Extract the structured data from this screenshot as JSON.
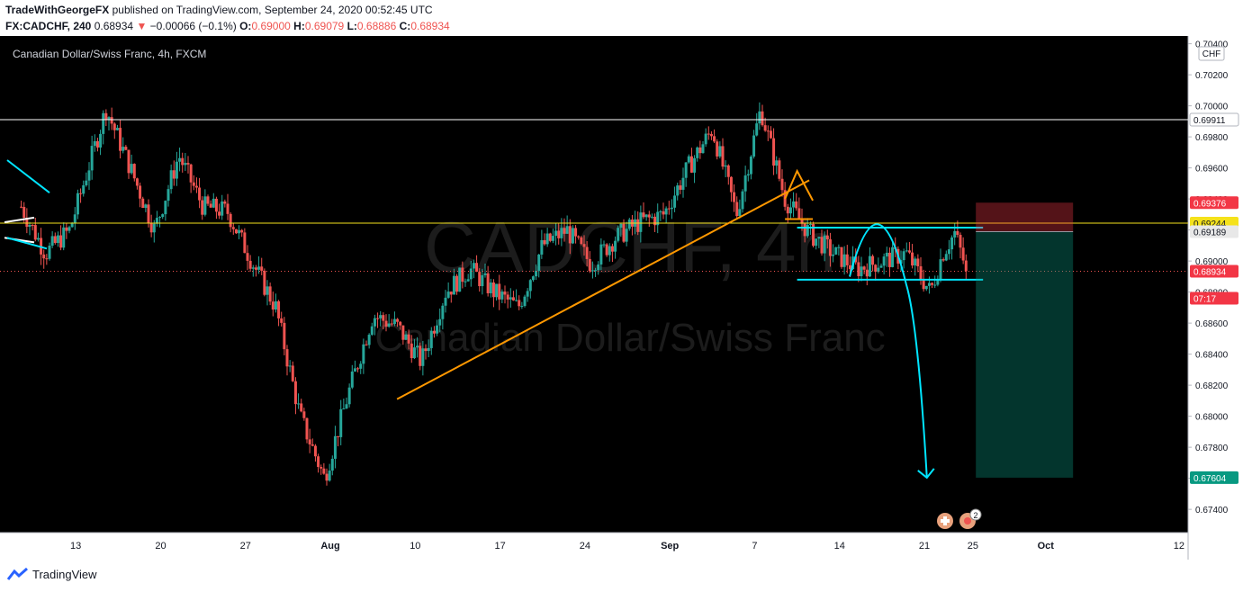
{
  "header": {
    "author": "TradeWithGeorgeFX",
    "published_text": "published on TradingView.com, September 24, 2020 00:52:45 UTC",
    "symbol": "FX:CADCHF, 240",
    "last": "0.68934",
    "change": "−0.00066 (−0.1%)",
    "o_label": "O:",
    "o_value": "0.69000",
    "h_label": "H:",
    "h_value": "0.69079",
    "l_label": "L:",
    "l_value": "0.68886",
    "c_label": "C:",
    "c_value": "0.68934"
  },
  "chart_title": "Canadian Dollar/Swiss Franc, 4h, FXCM",
  "watermark": {
    "ticker": "CADCHF, 4h",
    "name": "Canadian Dollar/Swiss Franc"
  },
  "currency_button": "CHF",
  "footer": {
    "brand": "TradingView"
  },
  "chart_data": {
    "type": "candlestick",
    "timeframe": "4h",
    "ylim": [
      0.6725,
      0.7045
    ],
    "y_ticks": [
      "0.70400",
      "0.70200",
      "0.70000",
      "0.69800",
      "0.69600",
      "0.69400",
      "0.69200",
      "0.69000",
      "0.68800",
      "0.68600",
      "0.68400",
      "0.68200",
      "0.68000",
      "0.67800",
      "0.67600",
      "0.67400"
    ],
    "x_ticks": [
      "13",
      "20",
      "27",
      "Aug",
      "10",
      "17",
      "24",
      "Sep",
      "7",
      "14",
      "21",
      "25",
      "Oct",
      "12"
    ],
    "x_tick_dates": [
      "2020-07-13",
      "2020-07-20",
      "2020-07-27",
      "2020-08-03",
      "2020-08-10",
      "2020-08-17",
      "2020-08-24",
      "2020-08-31",
      "2020-09-07",
      "2020-09-14",
      "2020-09-21",
      "2020-09-25",
      "2020-10-01",
      "2020-10-12"
    ],
    "price_path": [
      [
        "2020-07-08",
        0.6935
      ],
      [
        "2020-07-10",
        0.6905
      ],
      [
        "2020-07-12",
        0.692
      ],
      [
        "2020-07-15",
        0.6998
      ],
      [
        "2020-07-17",
        0.696
      ],
      [
        "2020-07-19",
        0.692
      ],
      [
        "2020-07-21",
        0.6968
      ],
      [
        "2020-07-23",
        0.6935
      ],
      [
        "2020-07-25",
        0.6932
      ],
      [
        "2020-07-27",
        0.69
      ],
      [
        "2020-07-29",
        0.687
      ],
      [
        "2020-07-31",
        0.68
      ],
      [
        "2020-08-02",
        0.676
      ],
      [
        "2020-08-04",
        0.6815
      ],
      [
        "2020-08-06",
        0.6865
      ],
      [
        "2020-08-08",
        0.6858
      ],
      [
        "2020-08-10",
        0.6835
      ],
      [
        "2020-08-12",
        0.688
      ],
      [
        "2020-08-14",
        0.6895
      ],
      [
        "2020-08-16",
        0.688
      ],
      [
        "2020-08-18",
        0.687
      ],
      [
        "2020-08-20",
        0.691
      ],
      [
        "2020-08-22",
        0.692
      ],
      [
        "2020-08-24",
        0.6898
      ],
      [
        "2020-08-26",
        0.6915
      ],
      [
        "2020-08-28",
        0.6925
      ],
      [
        "2020-08-30",
        0.693
      ],
      [
        "2020-09-01",
        0.696
      ],
      [
        "2020-09-03",
        0.6985
      ],
      [
        "2020-09-05",
        0.693
      ],
      [
        "2020-09-07",
        0.6998
      ],
      [
        "2020-09-09",
        0.694
      ],
      [
        "2020-09-11",
        0.6918
      ],
      [
        "2020-09-13",
        0.6905
      ],
      [
        "2020-09-15",
        0.6895
      ],
      [
        "2020-09-17",
        0.69
      ],
      [
        "2020-09-19",
        0.6905
      ],
      [
        "2020-09-21",
        0.688
      ],
      [
        "2020-09-22",
        0.6905
      ],
      [
        "2020-09-23",
        0.6918
      ],
      [
        "2020-09-24",
        0.68934
      ]
    ],
    "last_close": 0.68934,
    "drawings": {
      "horizontal_lines": [
        {
          "price": 0.69911,
          "color": "#ffffff"
        },
        {
          "price": 0.69244,
          "color": "#f5e21b"
        }
      ],
      "orange_trendline": [
        [
          "2020-08-08",
          0.6811
        ],
        [
          "2020-09-11",
          0.6952
        ]
      ],
      "cyan_range_top": 0.69215,
      "cyan_range_bottom": 0.6888,
      "short_position": {
        "entry": 0.69189,
        "stop": 0.69376,
        "target": 0.67604
      },
      "projected_drop_to": 0.67604
    },
    "price_labels": [
      {
        "text": "0.69911",
        "color": "#ffffff",
        "text_color": "#131722",
        "price": 0.69911
      },
      {
        "text": "0.69376",
        "color": "#f23645",
        "text_color": "#ffffff",
        "price": 0.69376
      },
      {
        "text": "0.69244",
        "color": "#f5e21b",
        "text_color": "#131722",
        "price": 0.69244
      },
      {
        "text": "0.69189",
        "color": "#e8e8e8",
        "text_color": "#131722",
        "price": 0.69189
      },
      {
        "text": "0.68934",
        "color": "#f23645",
        "text_color": "#ffffff",
        "price": 0.68934
      },
      {
        "text": "07:17",
        "color": "#f23645",
        "text_color": "#ffffff",
        "price": 0.6876
      },
      {
        "text": "0.67604",
        "color": "#089981",
        "text_color": "#ffffff",
        "price": 0.67604
      }
    ],
    "colors": {
      "up": "#26a69a",
      "down": "#ef5350",
      "trendline": "#ff9800",
      "range": "#00e5ff",
      "background": "#000000"
    }
  }
}
